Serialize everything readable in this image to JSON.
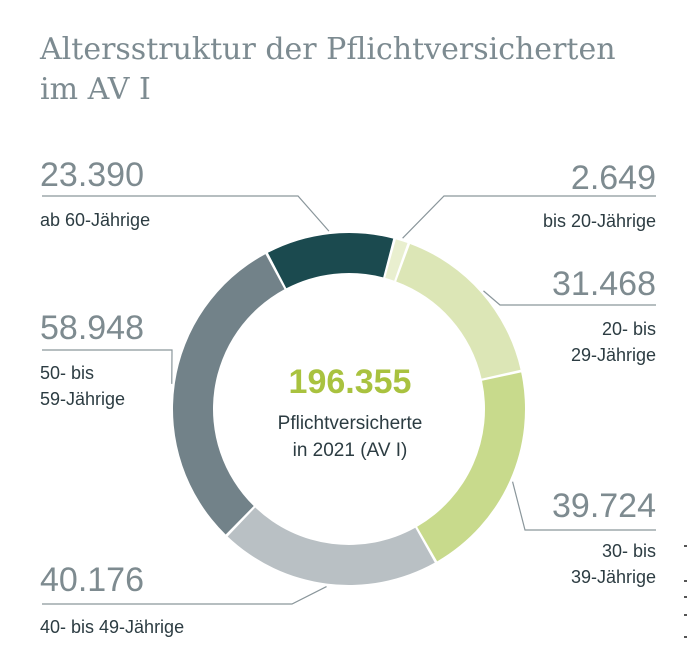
{
  "title_lines": [
    "Altersstruktur der Pflichtversicherten",
    "im AV I"
  ],
  "center": {
    "total": "196.355",
    "label_lines": [
      "Pflichtversicherte",
      "in 2021 (AV I)"
    ]
  },
  "chart_data": {
    "type": "pie",
    "title": "Altersstruktur der Pflichtversicherten im AV I",
    "total": 196355,
    "total_label": "Pflichtversicherte in 2021 (AV I)",
    "slices": [
      {
        "label": "bis 20-Jährige",
        "value": 2649,
        "value_text": "2.649",
        "label_lines": [
          "bis 20-Jährige"
        ],
        "color": "#e9efcf"
      },
      {
        "label": "20- bis 29-Jährige",
        "value": 31468,
        "value_text": "31.468",
        "label_lines": [
          "20- bis",
          "29-Jährige"
        ],
        "color": "#dce6b6"
      },
      {
        "label": "30- bis 39-Jährige",
        "value": 39724,
        "value_text": "39.724",
        "label_lines": [
          "30- bis",
          "39-Jährige"
        ],
        "color": "#c8da8c"
      },
      {
        "label": "40- bis 49-Jährige",
        "value": 40176,
        "value_text": "40.176",
        "label_lines": [
          "40- bis 49-Jährige"
        ],
        "color": "#b9c0c4"
      },
      {
        "label": "50- bis 59-Jährige",
        "value": 58948,
        "value_text": "58.948",
        "label_lines": [
          "50- bis",
          "59-Jährige"
        ],
        "color": "#728289"
      },
      {
        "label": "ab 60-Jährige",
        "value": 23390,
        "value_text": "23.390",
        "label_lines": [
          "ab 60-Jährige"
        ],
        "color": "#1b4a4f"
      }
    ]
  },
  "colors": {
    "title": "#7d8b91",
    "value_text": "#7e8b90",
    "label_text": "#2c3c42",
    "total_accent": "#a9c23f",
    "leader_line": "#8a969b"
  }
}
